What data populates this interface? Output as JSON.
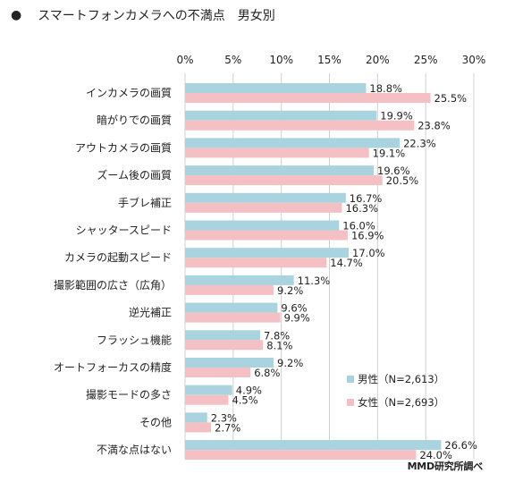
{
  "chart_data": {
    "type": "bar",
    "orientation": "horizontal",
    "title": "スマートフォンカメラへの不満点　男女別",
    "title_bullet": "●",
    "xlim": [
      0,
      30
    ],
    "ticks": [
      "0%",
      "5%",
      "10%",
      "15%",
      "20%",
      "25%",
      "30%"
    ],
    "tick_values": [
      0,
      5,
      10,
      15,
      20,
      25,
      30
    ],
    "grid": true,
    "legend_position": "bottom-right",
    "categories": [
      "インカメラの画質",
      "暗がりでの画質",
      "アウトカメラの画質",
      "ズーム後の画質",
      "手ブレ補正",
      "シャッタースピード",
      "カメラの起動スピード",
      "撮影範囲の広さ（広角）",
      "逆光補正",
      "フラッシュ機能",
      "オートフォーカスの精度",
      "撮影モードの多さ",
      "その他",
      "不満な点はない"
    ],
    "series": [
      {
        "name": "男性（N=2,613）",
        "color": "#a8d3df",
        "values": [
          18.8,
          19.9,
          22.3,
          19.6,
          16.7,
          16.0,
          17.0,
          11.3,
          9.6,
          7.8,
          9.2,
          4.9,
          2.3,
          26.6
        ],
        "labels": [
          "18.8%",
          "19.9%",
          "22.3%",
          "19.6%",
          "16.7%",
          "16.0%",
          "17.0%",
          "11.3%",
          "9.6%",
          "7.8%",
          "9.2%",
          "4.9%",
          "2.3%",
          "26.6%"
        ]
      },
      {
        "name": "女性（N=2,693）",
        "color": "#f5c0c3",
        "values": [
          25.5,
          23.8,
          19.1,
          20.5,
          16.3,
          16.9,
          14.7,
          9.2,
          9.9,
          8.1,
          6.8,
          4.5,
          2.7,
          24.0
        ],
        "labels": [
          "25.5%",
          "23.8%",
          "19.1%",
          "20.5%",
          "16.3%",
          "16.9%",
          "14.7%",
          "9.2%",
          "9.9%",
          "8.1%",
          "6.8%",
          "4.5%",
          "2.7%",
          "24.0%"
        ]
      }
    ],
    "source": "MMD研究所調べ"
  }
}
